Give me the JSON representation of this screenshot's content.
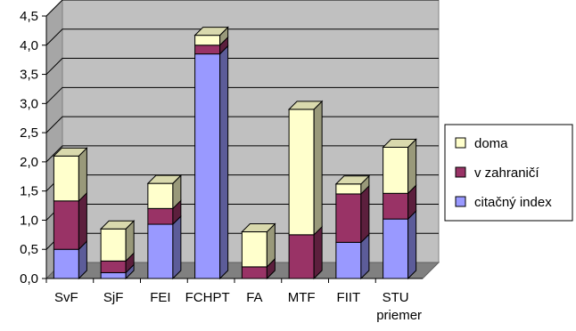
{
  "chart_data": {
    "type": "bar",
    "stacked": true,
    "three_d": true,
    "categories": [
      "SvF",
      "SjF",
      "FEI",
      "FCHPT",
      "FA",
      "MTF",
      "FIIT",
      "STU priemer"
    ],
    "series": [
      {
        "name": "citačný index",
        "color": "#9999ff",
        "values": [
          0.5,
          0.1,
          0.93,
          3.85,
          0.0,
          0.0,
          0.62,
          1.02
        ]
      },
      {
        "name": "v zahraničí",
        "color": "#993366",
        "values": [
          0.83,
          0.2,
          0.27,
          0.15,
          0.2,
          0.75,
          0.83,
          0.44
        ]
      },
      {
        "name": "doma",
        "color": "#ffffcc",
        "values": [
          0.77,
          0.55,
          0.43,
          0.17,
          0.6,
          2.15,
          0.17,
          0.79
        ]
      }
    ],
    "ylim": [
      0,
      4.5
    ],
    "yticks": [
      "0,0",
      "0,5",
      "1,0",
      "1,5",
      "2,0",
      "2,5",
      "3,0",
      "3,5",
      "4,0",
      "4,5"
    ],
    "grid": true,
    "legend_position": "right"
  }
}
